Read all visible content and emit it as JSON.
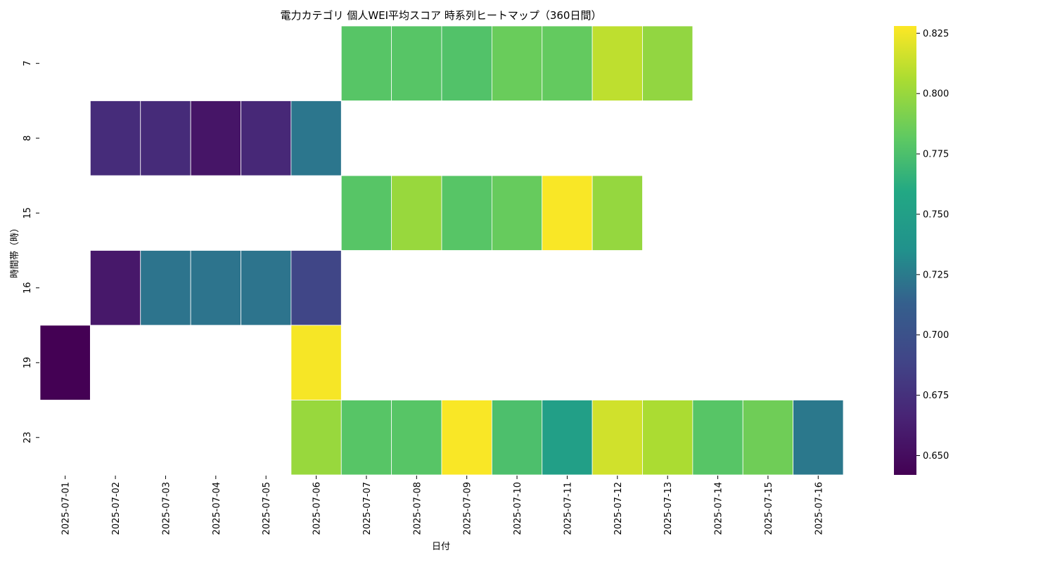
{
  "chart_data": {
    "type": "heatmap",
    "title": "電力カテゴリ 個人WEI平均スコア 時系列ヒートマップ（360日間）",
    "xlabel": "日付",
    "ylabel": "時間帯（時）",
    "x_categories": [
      "2025-07-01",
      "2025-07-02",
      "2025-07-03",
      "2025-07-04",
      "2025-07-05",
      "2025-07-06",
      "2025-07-07",
      "2025-07-08",
      "2025-07-09",
      "2025-07-10",
      "2025-07-11",
      "2025-07-12",
      "2025-07-13",
      "2025-07-14",
      "2025-07-15",
      "2025-07-16"
    ],
    "y_categories": [
      "7",
      "8",
      "15",
      "16",
      "19",
      "23"
    ],
    "values": [
      [
        null,
        null,
        null,
        null,
        null,
        null,
        0.779,
        0.779,
        0.777,
        0.785,
        0.783,
        0.811,
        0.798,
        null,
        null,
        null
      ],
      [
        null,
        0.672,
        0.671,
        0.656,
        0.669,
        0.723,
        null,
        null,
        null,
        null,
        null,
        null,
        null,
        null,
        null,
        null
      ],
      [
        null,
        null,
        null,
        null,
        null,
        null,
        0.779,
        0.8,
        0.779,
        0.784,
        0.827,
        0.799,
        null,
        null,
        null,
        null
      ],
      [
        null,
        0.658,
        0.722,
        0.722,
        0.722,
        0.69,
        null,
        null,
        null,
        null,
        null,
        null,
        null,
        null,
        null,
        null
      ],
      [
        0.642,
        null,
        null,
        null,
        null,
        0.826,
        null,
        null,
        null,
        null,
        null,
        null,
        null,
        null,
        null,
        null
      ],
      [
        null,
        null,
        null,
        null,
        null,
        0.8,
        0.779,
        0.779,
        0.827,
        0.775,
        0.75,
        0.816,
        0.806,
        0.779,
        0.787,
        0.724
      ]
    ],
    "colormap": "viridis",
    "vmin": 0.642,
    "vmax": 0.828,
    "colorbar_ticks": [
      0.65,
      0.675,
      0.7,
      0.725,
      0.75,
      0.775,
      0.8,
      0.825
    ],
    "colorbar_tick_labels": [
      "0.650",
      "0.675",
      "0.700",
      "0.725",
      "0.750",
      "0.775",
      "0.800",
      "0.825"
    ]
  }
}
